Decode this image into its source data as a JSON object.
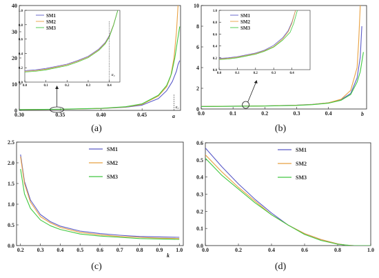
{
  "colors": {
    "SM1": "#5a5ac8",
    "SM2": "#e8a040",
    "SM3": "#40c840"
  },
  "chart_data": [
    {
      "panel": "a",
      "caption": "(a)",
      "type": "line",
      "xlabel": "a",
      "ylabel": "",
      "xlim": [
        0.3,
        0.497
      ],
      "ylim": [
        0,
        40
      ],
      "xticks": [
        "0.30",
        "0.35",
        "0.40",
        "0.45"
      ],
      "yticks": [
        "0",
        "10",
        "20",
        "30",
        "40"
      ],
      "annotation": "a₀",
      "legend": [
        "SM1",
        "SM2",
        "SM3"
      ],
      "series": [
        {
          "name": "SM1",
          "x": [
            0.3,
            0.35,
            0.4,
            0.43,
            0.45,
            0.47,
            0.48,
            0.487,
            0.492,
            0.494,
            0.496
          ],
          "y": [
            0.3,
            0.4,
            0.7,
            1.2,
            2.0,
            4.5,
            7.5,
            11,
            15,
            17.5,
            19
          ]
        },
        {
          "name": "SM2",
          "x": [
            0.3,
            0.35,
            0.4,
            0.43,
            0.45,
            0.47,
            0.48,
            0.485,
            0.489,
            0.492,
            0.494
          ],
          "y": [
            0.3,
            0.4,
            0.75,
            1.3,
            2.3,
            5.5,
            9,
            13,
            20,
            30,
            40
          ]
        },
        {
          "name": "SM3",
          "x": [
            0.3,
            0.35,
            0.4,
            0.43,
            0.45,
            0.47,
            0.48,
            0.486,
            0.49,
            0.493,
            0.496
          ],
          "y": [
            0.3,
            0.45,
            0.8,
            1.4,
            2.5,
            5.8,
            9.5,
            14,
            20,
            26,
            32
          ]
        }
      ],
      "inset": {
        "xlim": [
          0,
          0.45
        ],
        "ylim": [
          0,
          1.0
        ],
        "xticks": [
          "0.0",
          "0.1",
          "0.2",
          "0.3",
          "0.4"
        ],
        "yticks": [
          "0.0",
          "0.2",
          "0.4",
          "0.6",
          "0.8",
          "1.0"
        ],
        "annotation": "a₀",
        "legend": [
          "SM1",
          "SM2",
          "SM3"
        ],
        "series": [
          {
            "name": "SM1",
            "x": [
              0,
              0.05,
              0.1,
              0.15,
              0.2,
              0.25,
              0.3,
              0.35,
              0.38,
              0.4,
              0.42,
              0.44
            ],
            "y": [
              0.16,
              0.17,
              0.19,
              0.22,
              0.25,
              0.3,
              0.36,
              0.46,
              0.55,
              0.65,
              0.8,
              1.0
            ]
          },
          {
            "name": "SM2",
            "x": [
              0,
              0.05,
              0.1,
              0.15,
              0.2,
              0.25,
              0.3,
              0.35,
              0.38,
              0.4,
              0.42,
              0.44
            ],
            "y": [
              0.15,
              0.16,
              0.18,
              0.21,
              0.24,
              0.29,
              0.35,
              0.45,
              0.54,
              0.64,
              0.8,
              1.0
            ]
          },
          {
            "name": "SM3",
            "x": [
              0,
              0.05,
              0.1,
              0.15,
              0.2,
              0.25,
              0.3,
              0.35,
              0.38,
              0.4,
              0.42,
              0.44
            ],
            "y": [
              0.14,
              0.15,
              0.17,
              0.2,
              0.23,
              0.28,
              0.34,
              0.44,
              0.53,
              0.63,
              0.79,
              1.0
            ]
          }
        ]
      }
    },
    {
      "panel": "b",
      "caption": "(b)",
      "type": "line",
      "xlabel": "b",
      "ylabel": "",
      "xlim": [
        0,
        0.52
      ],
      "ylim": [
        0,
        10
      ],
      "xticks": [
        "0.0",
        "0.1",
        "0.2",
        "0.3",
        "0.4"
      ],
      "yticks": [
        "0",
        "2",
        "4",
        "6",
        "8",
        "10"
      ],
      "legend": [
        "SM1",
        "SM2",
        "SM3"
      ],
      "series": [
        {
          "name": "SM1",
          "x": [
            0,
            0.1,
            0.2,
            0.3,
            0.35,
            0.4,
            0.44,
            0.47,
            0.49,
            0.5,
            0.505
          ],
          "y": [
            0.25,
            0.27,
            0.3,
            0.37,
            0.45,
            0.6,
            0.9,
            1.5,
            3,
            5,
            8
          ]
        },
        {
          "name": "SM2",
          "x": [
            0,
            0.1,
            0.2,
            0.3,
            0.35,
            0.4,
            0.44,
            0.47,
            0.49,
            0.495,
            0.5
          ],
          "y": [
            0.25,
            0.27,
            0.3,
            0.36,
            0.44,
            0.6,
            0.95,
            1.8,
            4,
            6.5,
            10
          ]
        },
        {
          "name": "SM3",
          "x": [
            0,
            0.1,
            0.2,
            0.3,
            0.35,
            0.4,
            0.44,
            0.47,
            0.49,
            0.5,
            0.51
          ],
          "y": [
            0.24,
            0.26,
            0.29,
            0.35,
            0.42,
            0.56,
            0.85,
            1.4,
            2.6,
            3.6,
            5.5
          ]
        }
      ],
      "inset": {
        "xlim": [
          0,
          0.5
        ],
        "ylim": [
          0,
          1.0
        ],
        "xticks": [
          "0.0",
          "0.1",
          "0.2",
          "0.3",
          "0.4"
        ],
        "yticks": [
          "0.0",
          "0.2",
          "0.4",
          "0.6",
          "0.8",
          "1.0"
        ],
        "legend": [
          "SM1",
          "SM2",
          "SM3"
        ],
        "series": [
          {
            "name": "SM1",
            "x": [
              0,
              0.05,
              0.1,
              0.15,
              0.2,
              0.25,
              0.3,
              0.35,
              0.38,
              0.4,
              0.42
            ],
            "y": [
              0.19,
              0.2,
              0.22,
              0.25,
              0.28,
              0.33,
              0.41,
              0.54,
              0.66,
              0.8,
              1.0
            ]
          },
          {
            "name": "SM2",
            "x": [
              0,
              0.05,
              0.1,
              0.15,
              0.2,
              0.25,
              0.3,
              0.35,
              0.38,
              0.4,
              0.42
            ],
            "y": [
              0.18,
              0.19,
              0.21,
              0.24,
              0.27,
              0.32,
              0.39,
              0.52,
              0.64,
              0.78,
              1.0
            ]
          },
          {
            "name": "SM3",
            "x": [
              0,
              0.05,
              0.1,
              0.15,
              0.2,
              0.25,
              0.3,
              0.35,
              0.39,
              0.41,
              0.43
            ],
            "y": [
              0.17,
              0.18,
              0.2,
              0.23,
              0.26,
              0.31,
              0.38,
              0.5,
              0.63,
              0.78,
              1.0
            ]
          }
        ]
      }
    },
    {
      "panel": "c",
      "caption": "(c)",
      "type": "line",
      "xlabel": "k",
      "ylabel": "",
      "xlim": [
        0.18,
        1.02
      ],
      "ylim": [
        0,
        2.5
      ],
      "xticks": [
        "0.2",
        "0.3",
        "0.4",
        "0.5",
        "0.6",
        "0.7",
        "0.8",
        "0.9",
        "1.0"
      ],
      "yticks": [
        "0.0",
        "0.5",
        "1.0",
        "1.5",
        "2.0",
        "2.5"
      ],
      "legend": [
        "SM1",
        "SM2",
        "SM3"
      ],
      "series": [
        {
          "name": "SM1",
          "x": [
            0.2,
            0.22,
            0.25,
            0.3,
            0.35,
            0.4,
            0.5,
            0.6,
            0.7,
            0.8,
            0.9,
            1.0
          ],
          "y": [
            2.2,
            1.55,
            1.1,
            0.75,
            0.58,
            0.47,
            0.35,
            0.29,
            0.25,
            0.22,
            0.21,
            0.2
          ]
        },
        {
          "name": "SM2",
          "x": [
            0.2,
            0.22,
            0.25,
            0.3,
            0.35,
            0.4,
            0.5,
            0.6,
            0.7,
            0.8,
            0.9,
            1.0
          ],
          "y": [
            2.15,
            1.5,
            1.05,
            0.7,
            0.55,
            0.44,
            0.32,
            0.26,
            0.22,
            0.2,
            0.18,
            0.17
          ]
        },
        {
          "name": "SM3",
          "x": [
            0.2,
            0.22,
            0.25,
            0.3,
            0.35,
            0.4,
            0.5,
            0.6,
            0.7,
            0.8,
            0.9,
            1.0
          ],
          "y": [
            1.85,
            1.25,
            0.9,
            0.62,
            0.48,
            0.39,
            0.28,
            0.23,
            0.2,
            0.17,
            0.16,
            0.15
          ]
        }
      ]
    },
    {
      "panel": "d",
      "caption": "(d)",
      "type": "line",
      "xlabel": "",
      "ylabel": "",
      "xlim": [
        0,
        1.0
      ],
      "ylim": [
        0,
        0.6
      ],
      "xticks": [
        "0.0",
        "0.2",
        "0.4",
        "0.6",
        "0.8",
        "1.0"
      ],
      "yticks": [
        "0.0",
        "0.1",
        "0.2",
        "0.3",
        "0.4",
        "0.5",
        "0.6"
      ],
      "legend": [
        "SM1",
        "SM2",
        "SM3"
      ],
      "series": [
        {
          "name": "SM1",
          "x": [
            0,
            0.1,
            0.2,
            0.3,
            0.4,
            0.5,
            0.6,
            0.7,
            0.8,
            0.85,
            0.9,
            1.0
          ],
          "y": [
            0.57,
            0.46,
            0.36,
            0.27,
            0.19,
            0.12,
            0.07,
            0.035,
            0.01,
            0.003,
            0,
            0
          ]
        },
        {
          "name": "SM2",
          "x": [
            0,
            0.1,
            0.2,
            0.3,
            0.4,
            0.5,
            0.6,
            0.7,
            0.8,
            0.85,
            0.9,
            1.0
          ],
          "y": [
            0.53,
            0.43,
            0.34,
            0.26,
            0.18,
            0.12,
            0.07,
            0.035,
            0.01,
            0.003,
            0,
            0
          ]
        },
        {
          "name": "SM3",
          "x": [
            0,
            0.1,
            0.2,
            0.3,
            0.4,
            0.5,
            0.6,
            0.7,
            0.8,
            0.88,
            0.92,
            1.0
          ],
          "y": [
            0.51,
            0.41,
            0.33,
            0.25,
            0.18,
            0.12,
            0.065,
            0.03,
            0.008,
            0,
            0,
            0
          ]
        }
      ]
    }
  ]
}
